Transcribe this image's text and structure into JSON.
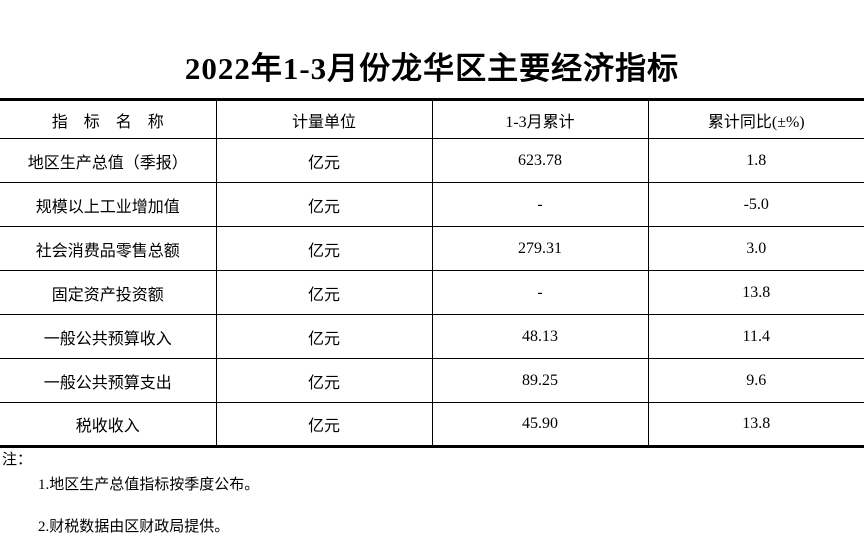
{
  "title": "2022年1-3月份龙华区主要经济指标",
  "table": {
    "columns": [
      "指　标　名　称",
      "计量单位",
      "1-3月累计",
      "累计同比(±%)"
    ],
    "rows": [
      [
        "地区生产总值（季报）",
        "亿元",
        "623.78",
        "1.8"
      ],
      [
        "规模以上工业增加值",
        "亿元",
        "-",
        "-5.0"
      ],
      [
        "社会消费品零售总额",
        "亿元",
        "279.31",
        "3.0"
      ],
      [
        "固定资产投资额",
        "亿元",
        "-",
        "13.8"
      ],
      [
        "一般公共预算收入",
        "亿元",
        "48.13",
        "11.4"
      ],
      [
        "一般公共预算支出",
        "亿元",
        "89.25",
        "9.6"
      ],
      [
        "税收收入",
        "亿元",
        "45.90",
        "13.8"
      ]
    ]
  },
  "notes": {
    "label": "注：",
    "items": [
      "1.地区生产总值指标按季度公布。",
      "2.财税数据由区财政局提供。"
    ]
  }
}
